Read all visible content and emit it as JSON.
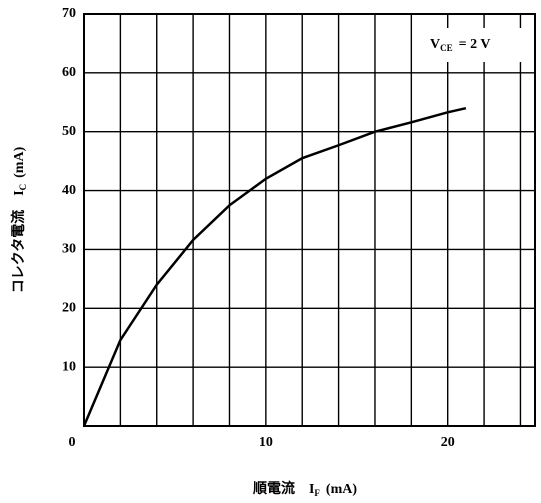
{
  "chart_data": {
    "type": "line",
    "annotation": {
      "text": "V",
      "sub": "CE",
      "rest": "= 2 V"
    },
    "x_label": {
      "text": "順電流　I",
      "sub": "F",
      "rest": "(mA)"
    },
    "y_label": {
      "text": "コレクタ電流　I",
      "sub": "C",
      "rest": "(mA)"
    },
    "series": [
      {
        "color": "#000000",
        "x": [
          0,
          2,
          4,
          6,
          8,
          10,
          12,
          14,
          16,
          18,
          20,
          21
        ],
        "values": [
          0,
          14.6,
          24,
          31.6,
          37.5,
          42,
          45.5,
          47.7,
          50,
          51.6,
          53.3,
          54
        ]
      }
    ],
    "xlim": [
      0,
      24.8
    ],
    "ylim": [
      0,
      70
    ],
    "xticks": [
      0,
      10,
      20
    ],
    "yticks": [
      10,
      20,
      30,
      40,
      50,
      60,
      70
    ],
    "xgrid_step": 2,
    "ygrid_step": 10,
    "grid": true
  }
}
